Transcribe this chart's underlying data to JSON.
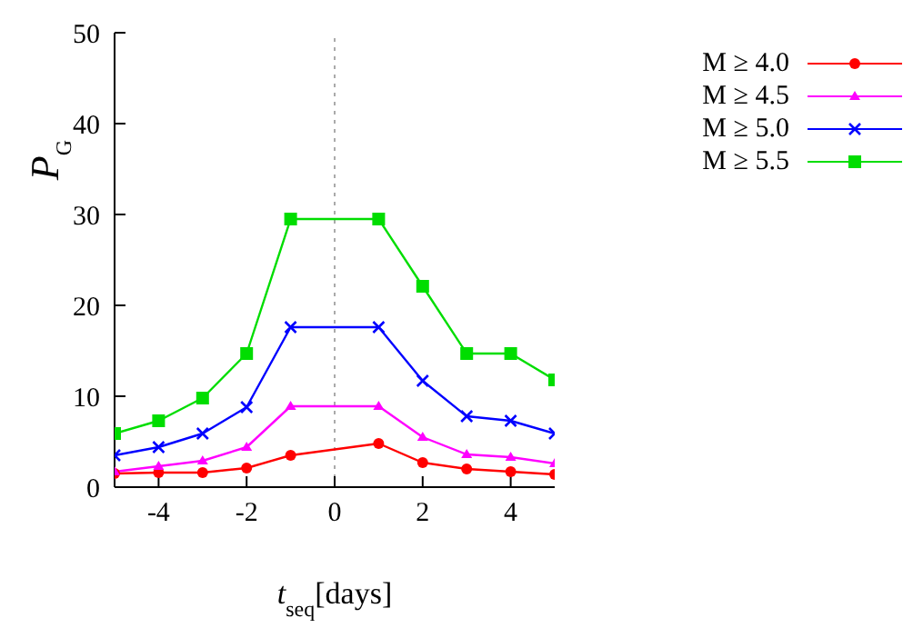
{
  "chart_data": {
    "type": "line",
    "xlabel": "t$_{seq}$[days]",
    "ylabel": "P$_{G}$",
    "x": [
      -5,
      -4,
      -3,
      -2,
      -1,
      1,
      2,
      3,
      4,
      5
    ],
    "series": [
      {
        "name": "M ≥ 4.0",
        "color": "#ff0000",
        "marker": "circle",
        "values": [
          1.5,
          1.6,
          1.6,
          2.1,
          3.5,
          4.8,
          2.7,
          2.0,
          1.7,
          1.4
        ]
      },
      {
        "name": "M ≥ 4.5",
        "color": "#ff00ff",
        "marker": "triangle",
        "values": [
          1.7,
          2.3,
          2.9,
          4.4,
          8.9,
          8.9,
          5.5,
          3.6,
          3.3,
          2.6
        ]
      },
      {
        "name": "M ≥ 5.0",
        "color": "#0000ff",
        "marker": "cross",
        "values": [
          3.5,
          4.4,
          5.9,
          8.8,
          17.6,
          17.6,
          11.7,
          7.8,
          7.3,
          5.9
        ]
      },
      {
        "name": "M ≥ 5.5",
        "color": "#00dd00",
        "marker": "square",
        "values": [
          5.9,
          7.3,
          9.8,
          14.7,
          29.5,
          29.5,
          22.1,
          14.7,
          14.7,
          11.8
        ]
      }
    ],
    "xlim": [
      -5,
      5
    ],
    "xticks": [
      -4,
      -2,
      0,
      2,
      4
    ],
    "ylim": [
      0,
      50
    ],
    "yticks": [
      0,
      10,
      20,
      30,
      40,
      50
    ],
    "ref_lines": [
      {
        "axis": "x",
        "value": 0,
        "line_style": "dotted",
        "color": "#aaaaaa"
      }
    ],
    "grid": false,
    "legend": "top right",
    "line_style": "solid"
  }
}
